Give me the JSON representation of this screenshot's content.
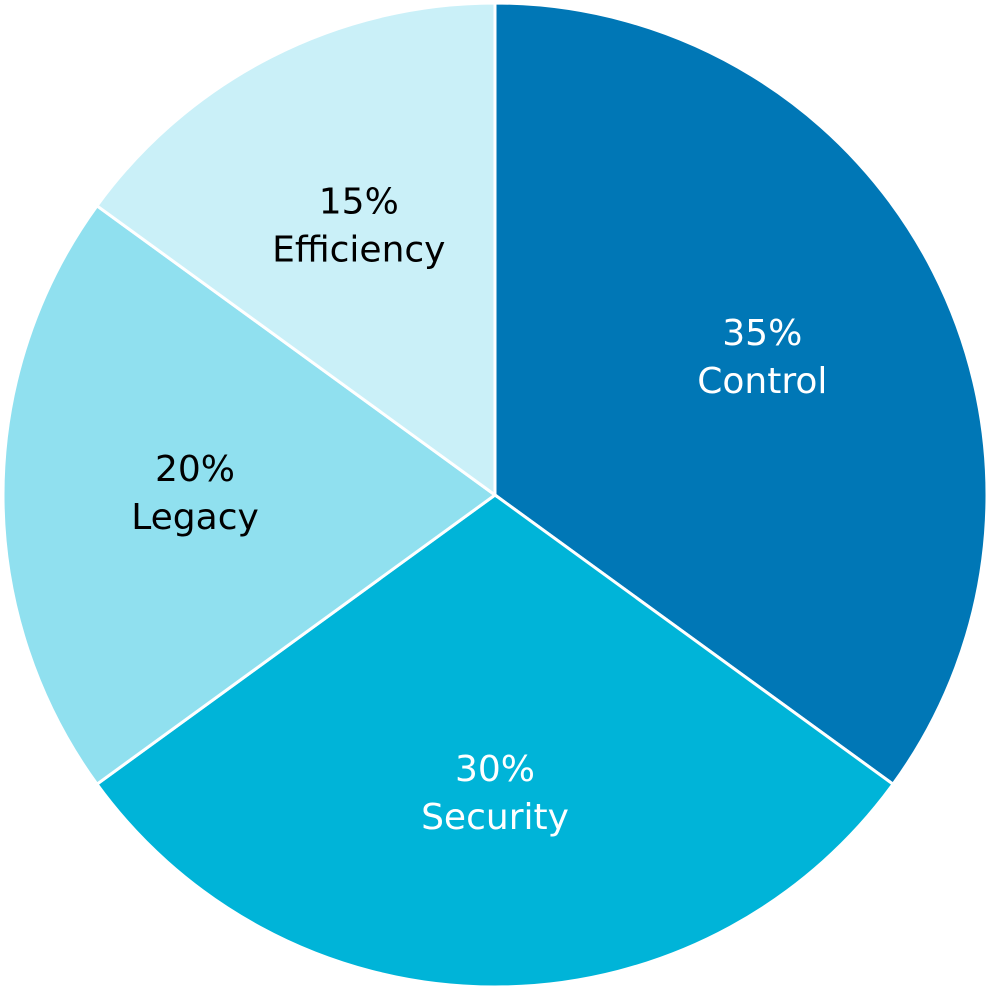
{
  "chart_data": {
    "type": "pie",
    "categories": [
      "Control",
      "Security",
      "Legacy",
      "Efficiency"
    ],
    "values": [
      35,
      30,
      20,
      15
    ],
    "value_labels": [
      "35%",
      "30%",
      "20%",
      "15%"
    ],
    "colors": [
      "#0077b6",
      "#00b4d8",
      "#90e0ef",
      "#caf0f8"
    ],
    "label_colors": [
      "#ffffff",
      "#ffffff",
      "#000000",
      "#000000"
    ]
  }
}
